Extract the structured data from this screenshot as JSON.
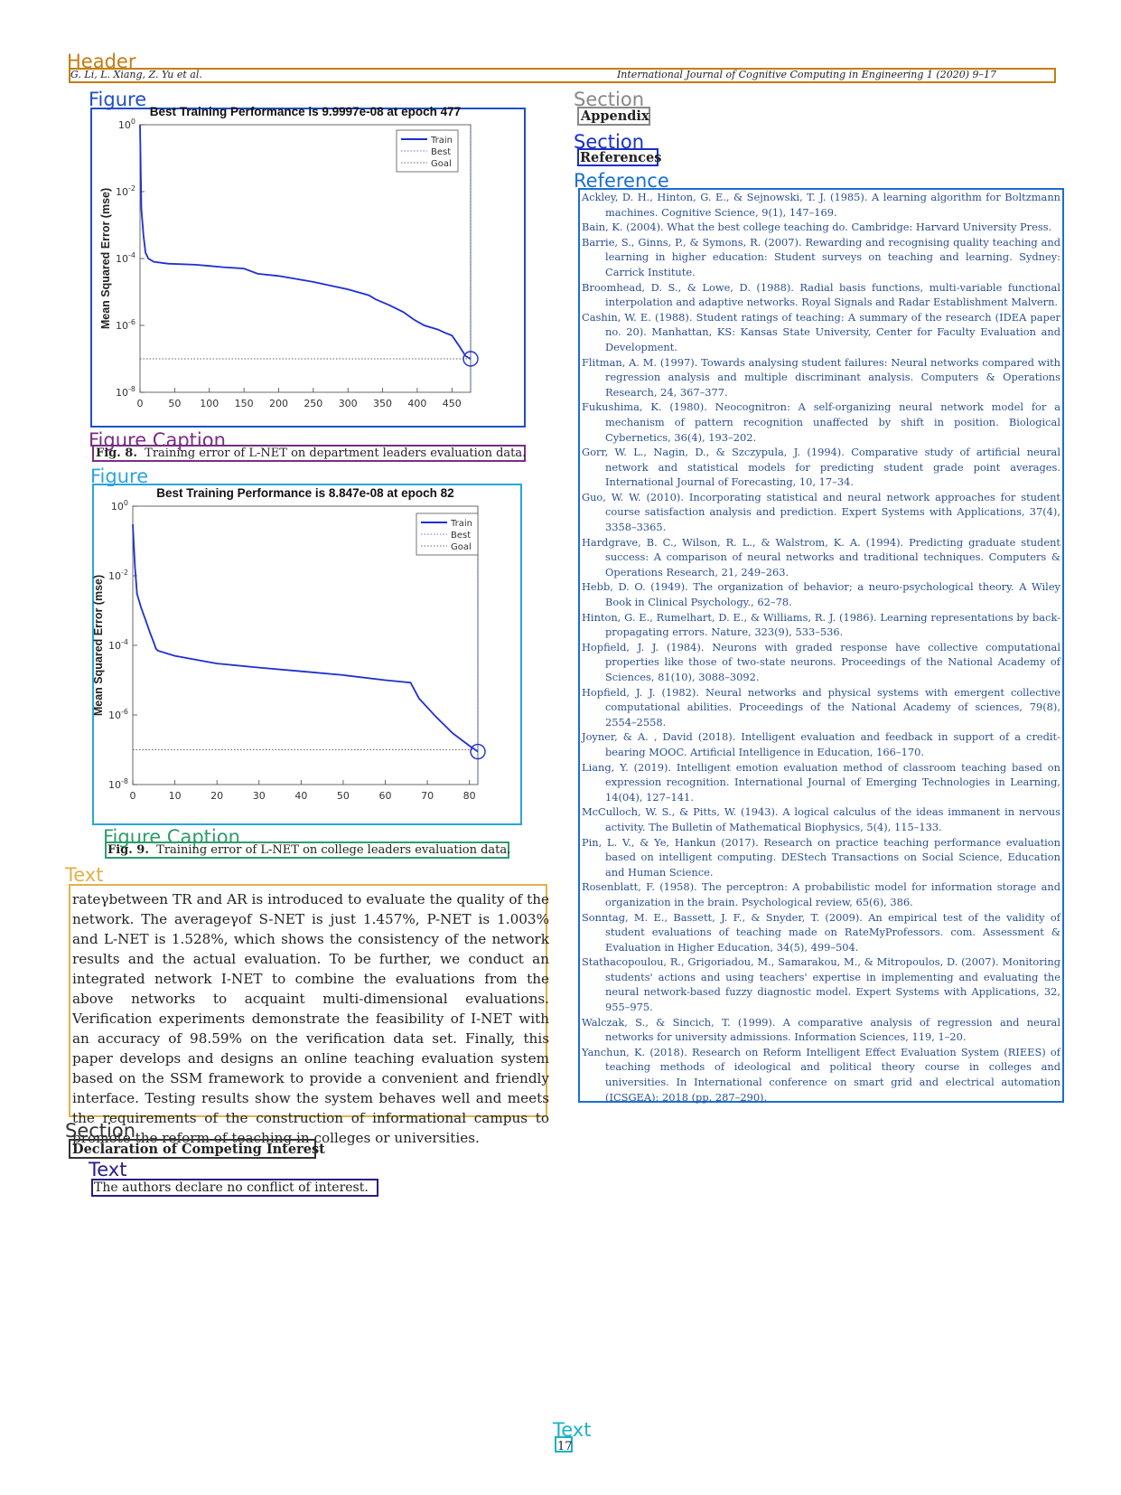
{
  "layout_tags": {
    "header": "Header",
    "figure": "Figure",
    "figure_caption": "Figure Caption",
    "text": "Text",
    "section": "Section",
    "reference": "Reference"
  },
  "colors": {
    "header": "#c47d10",
    "figure1": "#1f4fc8",
    "figure2": "#2ba4dc",
    "caption1": "#7a2d85",
    "caption2": "#2d9d6a",
    "text_body": "#e0b24a",
    "section_gray": "#888888",
    "section_blue": "#1a2fc8",
    "reference": "#1b6ed1",
    "section_dark": "#333333",
    "text_dark": "#2a1a8a",
    "pageno": "#1ab3c4"
  },
  "header": {
    "left": "G. Li, L. Xiang, Z. Yu et al.",
    "right": "International Journal of Cognitive Computing in Engineering 1 (2020) 9–17"
  },
  "figures": [
    {
      "label": "Fig. 8.",
      "caption": "Training error of L-NET on department leaders evaluation data."
    },
    {
      "label": "Fig. 9.",
      "caption": "Training error of L-NET on college leaders evaluation data."
    }
  ],
  "chart_data": [
    {
      "type": "line",
      "title": "Best Training Performance is 9.9997e-08 at epoch 477",
      "ylabel": "Mean Squared Error  (mse)",
      "xlabel": "",
      "y_scale": "log",
      "xlim": [
        0,
        477
      ],
      "ylim": [
        1e-08,
        1
      ],
      "x_ticks": [
        "0",
        "50",
        "100",
        "150",
        "200",
        "250",
        "300",
        "350",
        "400",
        "450"
      ],
      "y_ticks": [
        "10^0",
        "10^-2",
        "10^-4",
        "10^-6",
        "10^-8"
      ],
      "legend": [
        "Train",
        "Best",
        "Goal"
      ],
      "legend_position": "top-right",
      "series": [
        {
          "name": "Train",
          "x": [
            0,
            2,
            5,
            8,
            12,
            20,
            40,
            80,
            100,
            120,
            150,
            170,
            200,
            250,
            300,
            330,
            340,
            360,
            380,
            395,
            410,
            430,
            440,
            450,
            460,
            470,
            477
          ],
          "y": [
            1,
            0.003,
            0.0005,
            0.00015,
            0.0001,
            8e-05,
            7e-05,
            6.5e-05,
            6e-05,
            5.5e-05,
            5e-05,
            3.5e-05,
            3e-05,
            2e-05,
            1.2e-05,
            8e-06,
            6e-06,
            4e-06,
            2.5e-06,
            1.5e-06,
            1e-06,
            7.5e-07,
            6e-07,
            5e-07,
            2.5e-07,
            1.2e-07,
            9.997e-08
          ]
        },
        {
          "name": "Best",
          "x": [
            477,
            477
          ],
          "y": [
            1e-08,
            1
          ]
        },
        {
          "name": "Goal",
          "x": [
            0,
            477
          ],
          "y": [
            1e-07,
            1e-07
          ]
        }
      ],
      "best_point": {
        "x": 477,
        "y": 9.9997e-08
      }
    },
    {
      "type": "line",
      "title": "Best Training Performance is 8.847e-08 at epoch 82",
      "ylabel": "Mean Squared Error  (mse)",
      "xlabel": "",
      "y_scale": "log",
      "xlim": [
        0,
        82
      ],
      "ylim": [
        1e-08,
        1
      ],
      "x_ticks": [
        "0",
        "10",
        "20",
        "30",
        "40",
        "50",
        "60",
        "70",
        "80"
      ],
      "y_ticks": [
        "10^0",
        "10^-2",
        "10^-4",
        "10^-6",
        "10^-8"
      ],
      "legend": [
        "Train",
        "Best",
        "Goal"
      ],
      "legend_position": "top-right",
      "series": [
        {
          "name": "Train",
          "x": [
            0,
            0.5,
            1,
            2,
            3,
            4,
            5,
            5.5,
            6,
            10,
            20,
            30,
            40,
            50,
            60,
            66,
            68,
            72,
            76,
            80,
            82
          ],
          "y": [
            0.3,
            0.02,
            0.003,
            0.0012,
            0.00055,
            0.00025,
            0.00012,
            8e-05,
            7e-05,
            5e-05,
            3e-05,
            2.3e-05,
            1.8e-05,
            1.4e-05,
            1e-05,
            8.5e-06,
            3e-06,
            9e-07,
            3e-07,
            1.3e-07,
            8.847e-08
          ]
        },
        {
          "name": "Best",
          "x": [
            82,
            82
          ],
          "y": [
            1e-08,
            1
          ]
        },
        {
          "name": "Goal",
          "x": [
            0,
            82
          ],
          "y": [
            1e-07,
            1e-07
          ]
        }
      ],
      "best_point": {
        "x": 82,
        "y": 8.847e-08
      }
    }
  ],
  "body_text": "rateγbetween TR and AR is introduced to evaluate the quality of the network. The averageγof S-NET is just 1.457%, P-NET is 1.003% and L-NET is 1.528%, which shows the consistency of the network results and the actual evaluation. To be further, we conduct an integrated network I-NET to combine the evaluations from the above networks to acquaint multi-dimensional evaluations. Verification experiments demonstrate the feasibility of I-NET with an accuracy of 98.59% on the verification data set. Finally, this paper develops and designs an online teaching evaluation system based on the SSM framework to provide a convenient and friendly interface. Testing results show the system behaves well and meets the requirements of the construction of informational campus to promote the reform of teaching in colleges or universities.",
  "sections": {
    "appendix": "Appendix",
    "references": "References",
    "competing": "Declaration of Competing Interest"
  },
  "competing_text": "The authors declare no conflict of interest.",
  "references": [
    "Ackley, D. H., Hinton, G. E., & Sejnowski, T. J. (1985). A learning algorithm for Boltzmann machines. Cognitive Science, 9(1), 147–169.",
    "Bain, K. (2004). What the best college teaching do. Cambridge: Harvard University Press.",
    "Barrie, S., Ginns, P., & Symons, R. (2007). Rewarding and recognising quality teaching and learning in higher education: Student surveys on teaching and learning. Sydney: Carrick Institute.",
    "Broomhead, D. S., & Lowe, D. (1988). Radial basis functions, multi-variable functional interpolation and adaptive networks. Royal Signals and Radar Establishment Malvern.",
    "Cashin, W. E. (1988). Student ratings of teaching: A summary of the research (IDEA paper no. 20). Manhattan, KS: Kansas State University, Center for Faculty Evaluation and Development.",
    "Flitman, A. M. (1997). Towards analysing student failures: Neural networks compared with regression analysis and multiple discriminant analysis. Computers & Operations Research, 24, 367–377.",
    "Fukushima, K. (1980). Neocognitron: A self-organizing neural network model for a mechanism of pattern recognition unaffected by shift in position. Biological Cybernetics, 36(4), 193–202.",
    "Gorr, W. L., Nagin, D., & Szczypula, J. (1994). Comparative study of artificial neural network and statistical models for predicting student grade point averages. International Journal of Forecasting, 10, 17–34.",
    "Guo, W. W. (2010). Incorporating statistical and neural network approaches for student course satisfaction analysis and prediction. Expert Systems with Applications, 37(4), 3358–3365.",
    "Hardgrave, B. C., Wilson, R. L., & Walstrom, K. A. (1994). Predicting graduate student success: A comparison of neural networks and traditional techniques. Computers & Operations Research, 21, 249–263.",
    "Hebb, D. O. (1949). The organization of behavior; a neuro-psychological theory. A Wiley Book in Clinical Psychology., 62–78.",
    "Hinton, G. E., Rumelhart, D. E., & Williams, R. J. (1986). Learning representations by back-propagating errors. Nature, 323(9), 533–536.",
    "Hopfield, J. J. (1984). Neurons with graded response have collective computational properties like those of two-state neurons. Proceedings of the National Academy of Sciences, 81(10), 3088–3092.",
    "Hopfield, J. J. (1982). Neural networks and physical systems with emergent collective computational abilities. Proceedings of the National Academy of sciences, 79(8), 2554–2558.",
    "Joyner, & A. , David (2018). Intelligent evaluation and feedback in support of a credit-bearing MOOC. Artificial Intelligence in Education, 166–170.",
    "Liang, Y. (2019). Intelligent emotion evaluation method of classroom teaching based on expression recognition. International Journal of Emerging Technologies in Learning, 14(04), 127–141.",
    "McCulloch, W. S., & Pitts, W. (1943). A logical calculus of the ideas immanent in nervous activity. The Bulletin of Mathematical Biophysics, 5(4), 115–133.",
    "Pin, L. V., & Ye, Hankun (2017). Research on practice teaching performance evaluation based on intelligent computing. DEStech Transactions on Social Science, Education and Human Science.",
    "Rosenblatt, F. (1958). The perceptron: A probabilistic model for information storage and organization in the brain. Psychological review, 65(6), 386.",
    "Sonntag, M. E., Bassett, J. F., & Snyder, T. (2009). An empirical test of the validity of student evaluations of teaching made on RateMyProfessors. com. Assessment & Evaluation in Higher Education, 34(5), 499–504.",
    "Stathacopoulou, R., Grigoriadou, M., Samarakou, M., & Mitropoulos, D. (2007). Monitoring students' actions and using teachers' expertise in implementing and evaluating the neural network-based fuzzy diagnostic model. Expert Systems with Applications, 32, 955–975.",
    "Walczak, S., & Sincich, T. (1999). A comparative analysis of regression and neural networks for university admissions. Information Sciences, 119, 1–20.",
    "Yanchun, K. (2018). Research on Reform Intelligent Effect Evaluation System (RIEES) of teaching methods of ideological and political theory course in colleges and universities. In International conference on smart grid and electrical automation (ICSGEA): 2018 (pp. 287–290)."
  ],
  "page_number": "17"
}
